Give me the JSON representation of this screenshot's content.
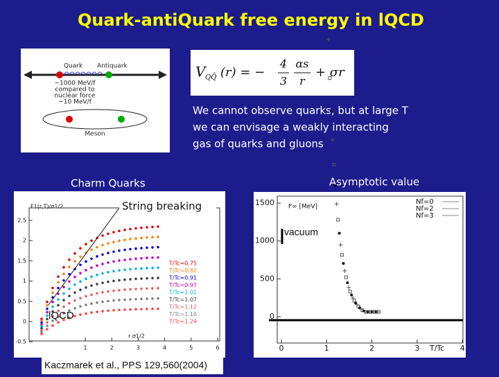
{
  "title": "Quark-antiQuark free energy in lQCD",
  "diagram": {
    "quark": "Quark",
    "antiquark": "Antiquark",
    "force_lines": [
      "~1000 MeV/f",
      "compared to",
      "nuclear force",
      "~10 MeV/f"
    ],
    "meson": "Meson"
  },
  "formula": {
    "lhs": "V",
    "lhs_sub": "QQ̄",
    "lhs_arg": "(r) = −",
    "coef_num": "4",
    "coef_den": "3",
    "frac_num": "αs",
    "frac_den": "r",
    "tail": "+ σr"
  },
  "description": [
    "We cannot observe quarks, but at large T",
    "we can envisage a weakly interacting",
    "gas of quarks and gluons"
  ],
  "annotations": {
    "charm": "Charm Quarks",
    "asymptotic": "Asymptotic value",
    "string_breaking": "String breaking",
    "vacuum": "vacuum",
    "lqcd": "lQCD",
    "citation": "Kaczmarek et al., PPS 129,560(2004)"
  },
  "left_plot": {
    "y_label": "F1(r,T)/σ1/2",
    "x_label": "r σ1/2",
    "yticks": [
      "2.5",
      "2",
      "1.5",
      "1",
      "0.5",
      "0",
      "-0.5"
    ],
    "xticks": [
      "1",
      "2",
      "3",
      "4",
      "5",
      "6"
    ],
    "legend": [
      {
        "label": "T/Tc=0.75",
        "color": "#e00000"
      },
      {
        "label": "T/Tc=0.82",
        "color": "#ff8000"
      },
      {
        "label": "T/Tc=0.91",
        "color": "#0000e0"
      },
      {
        "label": "T/Tc=0.97",
        "color": "#c000c0"
      },
      {
        "label": "T/Tc=1.01",
        "color": "#00b0e0"
      },
      {
        "label": "T/Tc=1.07",
        "color": "#404040"
      },
      {
        "label": "T/Tc=1.12",
        "color": "#e06060"
      },
      {
        "label": "T/Tc=1.16",
        "color": "#808080"
      },
      {
        "label": "T/Tc=1.24",
        "color": "#ff4040"
      }
    ]
  },
  "right_plot": {
    "y_label": "F∞ [MeV]",
    "x_label": "T/Tc",
    "yticks": [
      "1500",
      "1000",
      "500",
      "0"
    ],
    "xticks": [
      "0",
      "1",
      "2",
      "3",
      "4"
    ],
    "legend": [
      "Nf=0",
      "Nf=2",
      "Nf=3"
    ]
  }
}
